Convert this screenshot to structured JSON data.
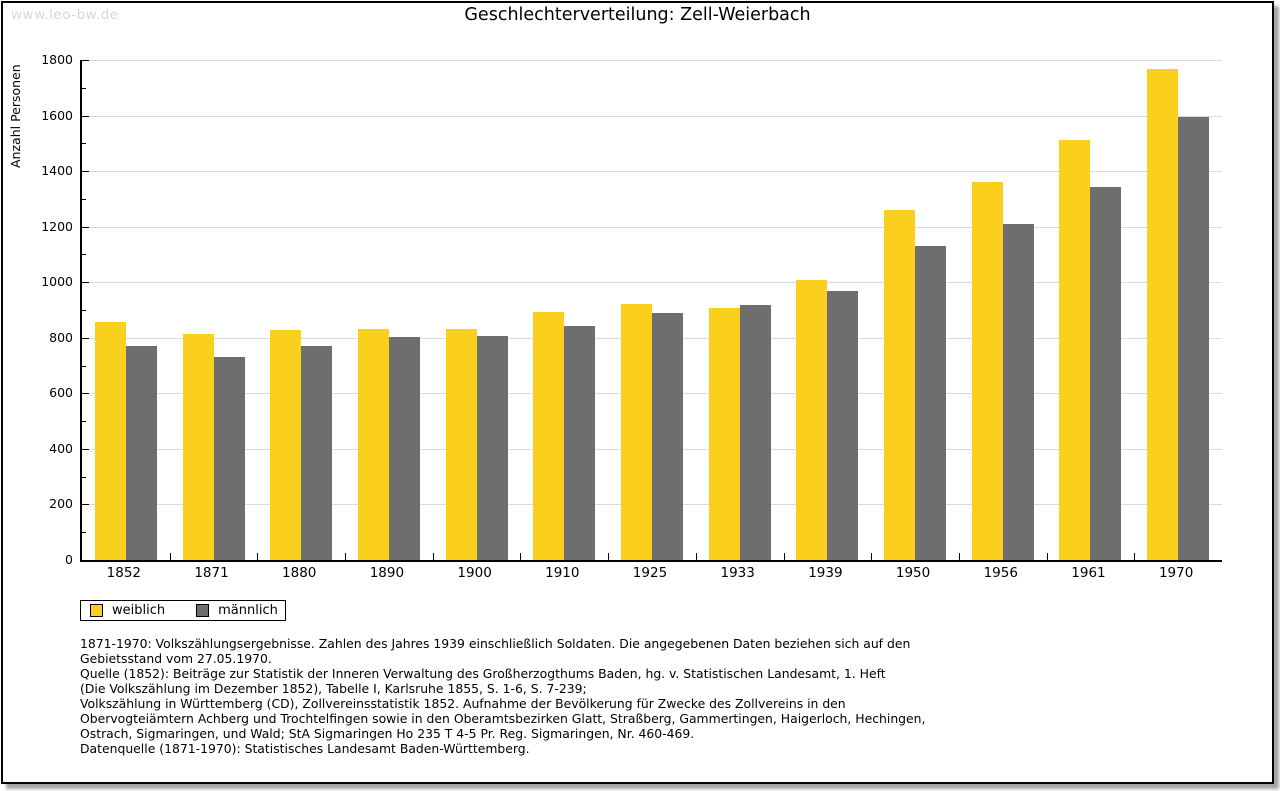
{
  "watermark": "www.leo-bw.de",
  "chart_data": {
    "type": "bar",
    "title": "Geschlechterverteilung: Zell-Weierbach",
    "xlabel": "",
    "ylabel": "Anzahl Personen",
    "categories": [
      "1852",
      "1871",
      "1880",
      "1890",
      "1900",
      "1910",
      "1925",
      "1933",
      "1939",
      "1950",
      "1956",
      "1961",
      "1970"
    ],
    "series": [
      {
        "name": "weiblich",
        "color": "#fbd01d",
        "values": [
          858,
          812,
          828,
          830,
          833,
          894,
          920,
          908,
          1008,
          1261,
          1362,
          1513,
          1768
        ]
      },
      {
        "name": "männlich",
        "color": "#6e6e6e",
        "values": [
          771,
          732,
          771,
          804,
          805,
          843,
          888,
          917,
          968,
          1132,
          1210,
          1343,
          1594
        ]
      }
    ],
    "ylim": [
      0,
      1800
    ],
    "ytick_major_step": 200,
    "ytick_minor_step": 100,
    "grid": "horizontal-major",
    "legend_position": "bottom-left"
  },
  "legend": {
    "items": [
      {
        "label": "weiblich",
        "color": "#fbd01d"
      },
      {
        "label": "männlich",
        "color": "#6e6e6e"
      }
    ]
  },
  "footnotes": {
    "lines": [
      "1871-1970: Volkszählungsergebnisse. Zahlen des Jahres 1939 einschließlich Soldaten. Die angegebenen Daten beziehen sich auf den",
      "Gebietsstand vom 27.05.1970.",
      "Quelle (1852): Beiträge zur Statistik der Inneren Verwaltung des Großherzogthums Baden, hg. v. Statistischen Landesamt, 1. Heft",
      "(Die Volkszählung im Dezember 1852), Tabelle I, Karlsruhe 1855, S. 1-6, S. 7-239;",
      "Volkszählung in Württemberg (CD), Zollvereinsstatistik 1852. Aufnahme der Bevölkerung für Zwecke des Zollvereins in den",
      "Obervogteiämtern Achberg und Trochtelfingen sowie in den Oberamtsbezirken Glatt, Straßberg, Gammertingen, Haigerloch, Hechingen,",
      "Ostrach, Sigmaringen, und Wald; StA Sigmaringen Ho 235 T 4-5 Pr. Reg. Sigmaringen, Nr. 460-469."
    ],
    "datasource": "Datenquelle (1871-1970): Statistisches Landesamt Baden-Württemberg."
  },
  "colors": {
    "grid": "#dadada",
    "axis": "#000000",
    "watermark": "#d6d6d6",
    "background": "#ffffff"
  }
}
